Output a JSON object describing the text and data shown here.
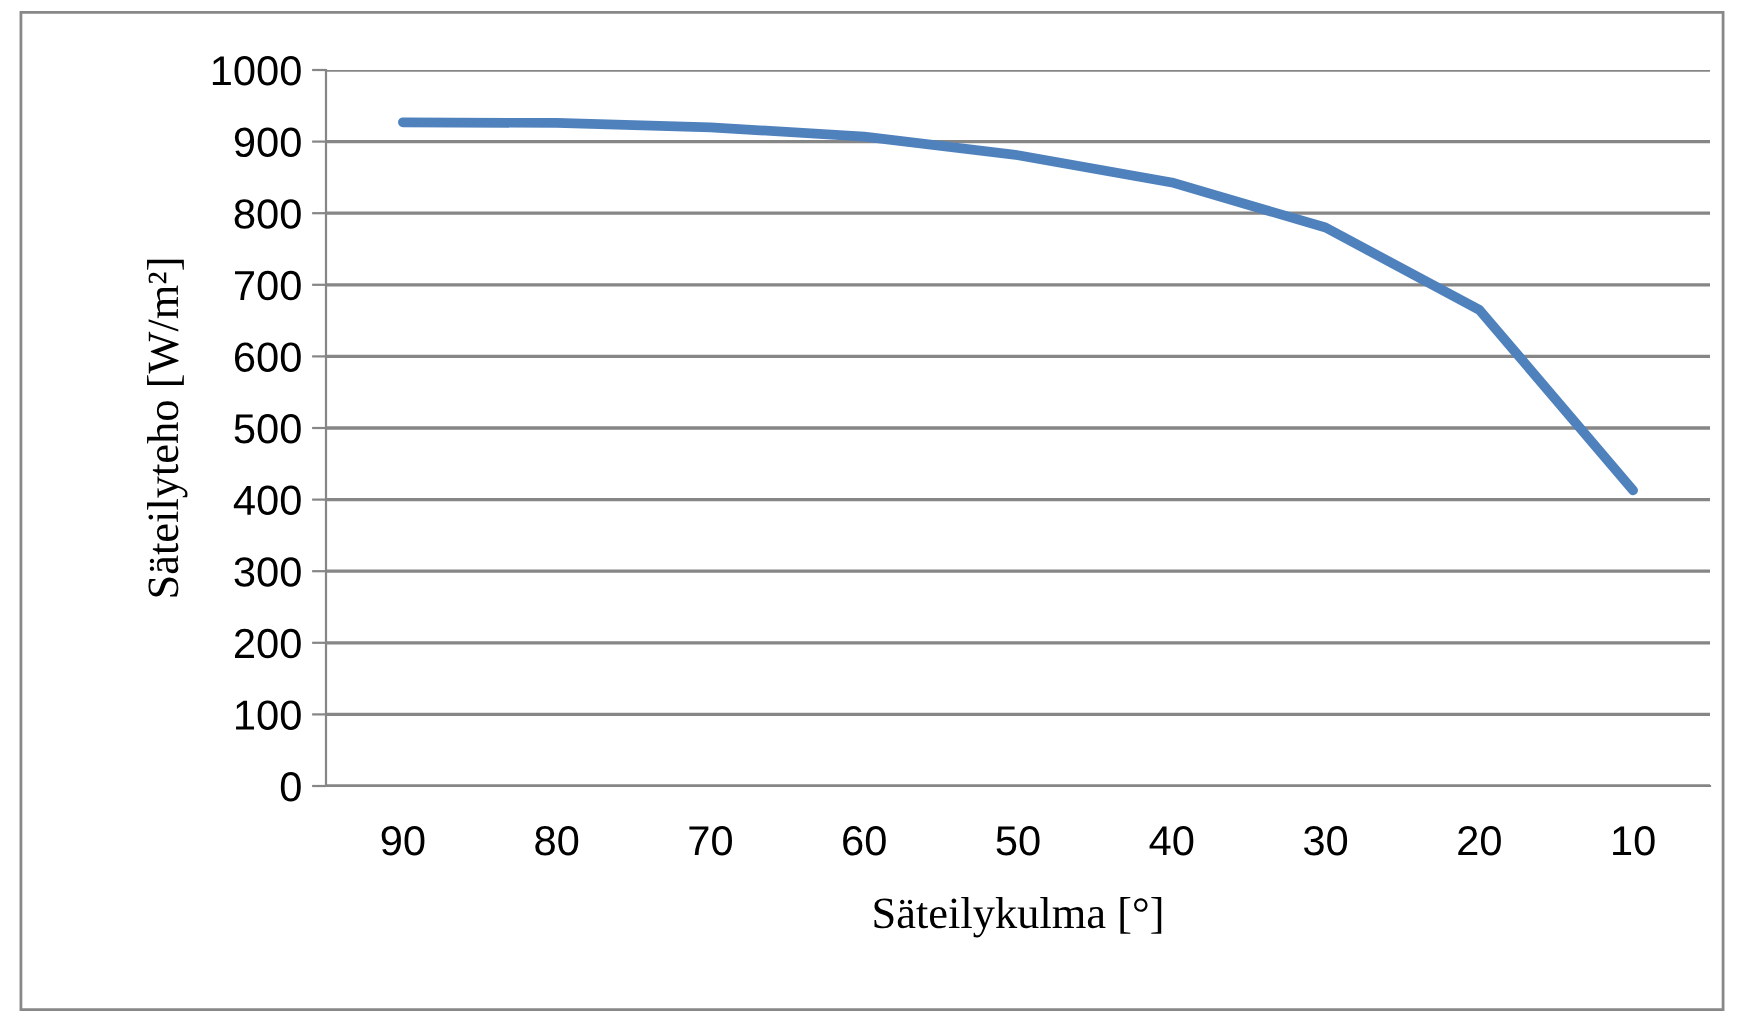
{
  "chart_data": {
    "type": "line",
    "xlabel": "Säteilykulma [°]",
    "ylabel": "Säteilyteho [W/m²]",
    "categories": [
      "90",
      "80",
      "70",
      "60",
      "50",
      "40",
      "30",
      "20",
      "10"
    ],
    "series": [
      {
        "color": "#4f81bd",
        "values": [
          927,
          926,
          920,
          907,
          881,
          843,
          780,
          665,
          413
        ]
      }
    ],
    "ylim": [
      0,
      1000
    ],
    "yticks": [
      0,
      100,
      200,
      300,
      400,
      500,
      600,
      700,
      800,
      900,
      1000
    ],
    "grid": "y",
    "legend": false,
    "marker": "none",
    "line_style": "solid"
  }
}
